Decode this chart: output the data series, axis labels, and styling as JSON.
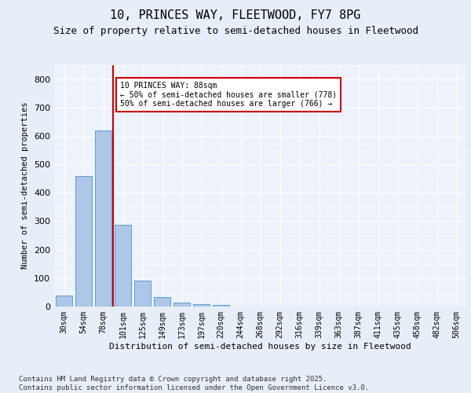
{
  "title_line1": "10, PRINCES WAY, FLEETWOOD, FY7 8PG",
  "title_line2": "Size of property relative to semi-detached houses in Fleetwood",
  "xlabel": "Distribution of semi-detached houses by size in Fleetwood",
  "ylabel": "Number of semi-detached properties",
  "bar_color": "#aec6e8",
  "bar_edge_color": "#5a9fd4",
  "vline_color": "#cc0000",
  "annotation_text": "10 PRINCES WAY: 88sqm\n← 50% of semi-detached houses are smaller (778)\n50% of semi-detached houses are larger (766) →",
  "annotation_box_color": "#cc0000",
  "categories": [
    "30sqm",
    "54sqm",
    "78sqm",
    "101sqm",
    "125sqm",
    "149sqm",
    "173sqm",
    "197sqm",
    "220sqm",
    "244sqm",
    "268sqm",
    "292sqm",
    "316sqm",
    "339sqm",
    "363sqm",
    "387sqm",
    "411sqm",
    "435sqm",
    "458sqm",
    "482sqm",
    "506sqm"
  ],
  "values": [
    38,
    460,
    618,
    288,
    92,
    32,
    14,
    8,
    5,
    0,
    0,
    0,
    0,
    0,
    0,
    0,
    0,
    0,
    0,
    0,
    0
  ],
  "ylim": [
    0,
    850
  ],
  "yticks": [
    0,
    100,
    200,
    300,
    400,
    500,
    600,
    700,
    800
  ],
  "background_color": "#e8eef7",
  "plot_background_color": "#edf2fb",
  "footer_text": "Contains HM Land Registry data © Crown copyright and database right 2025.\nContains public sector information licensed under the Open Government Licence v3.0.",
  "title_fontsize": 11,
  "subtitle_fontsize": 9,
  "footer_fontsize": 6.5
}
